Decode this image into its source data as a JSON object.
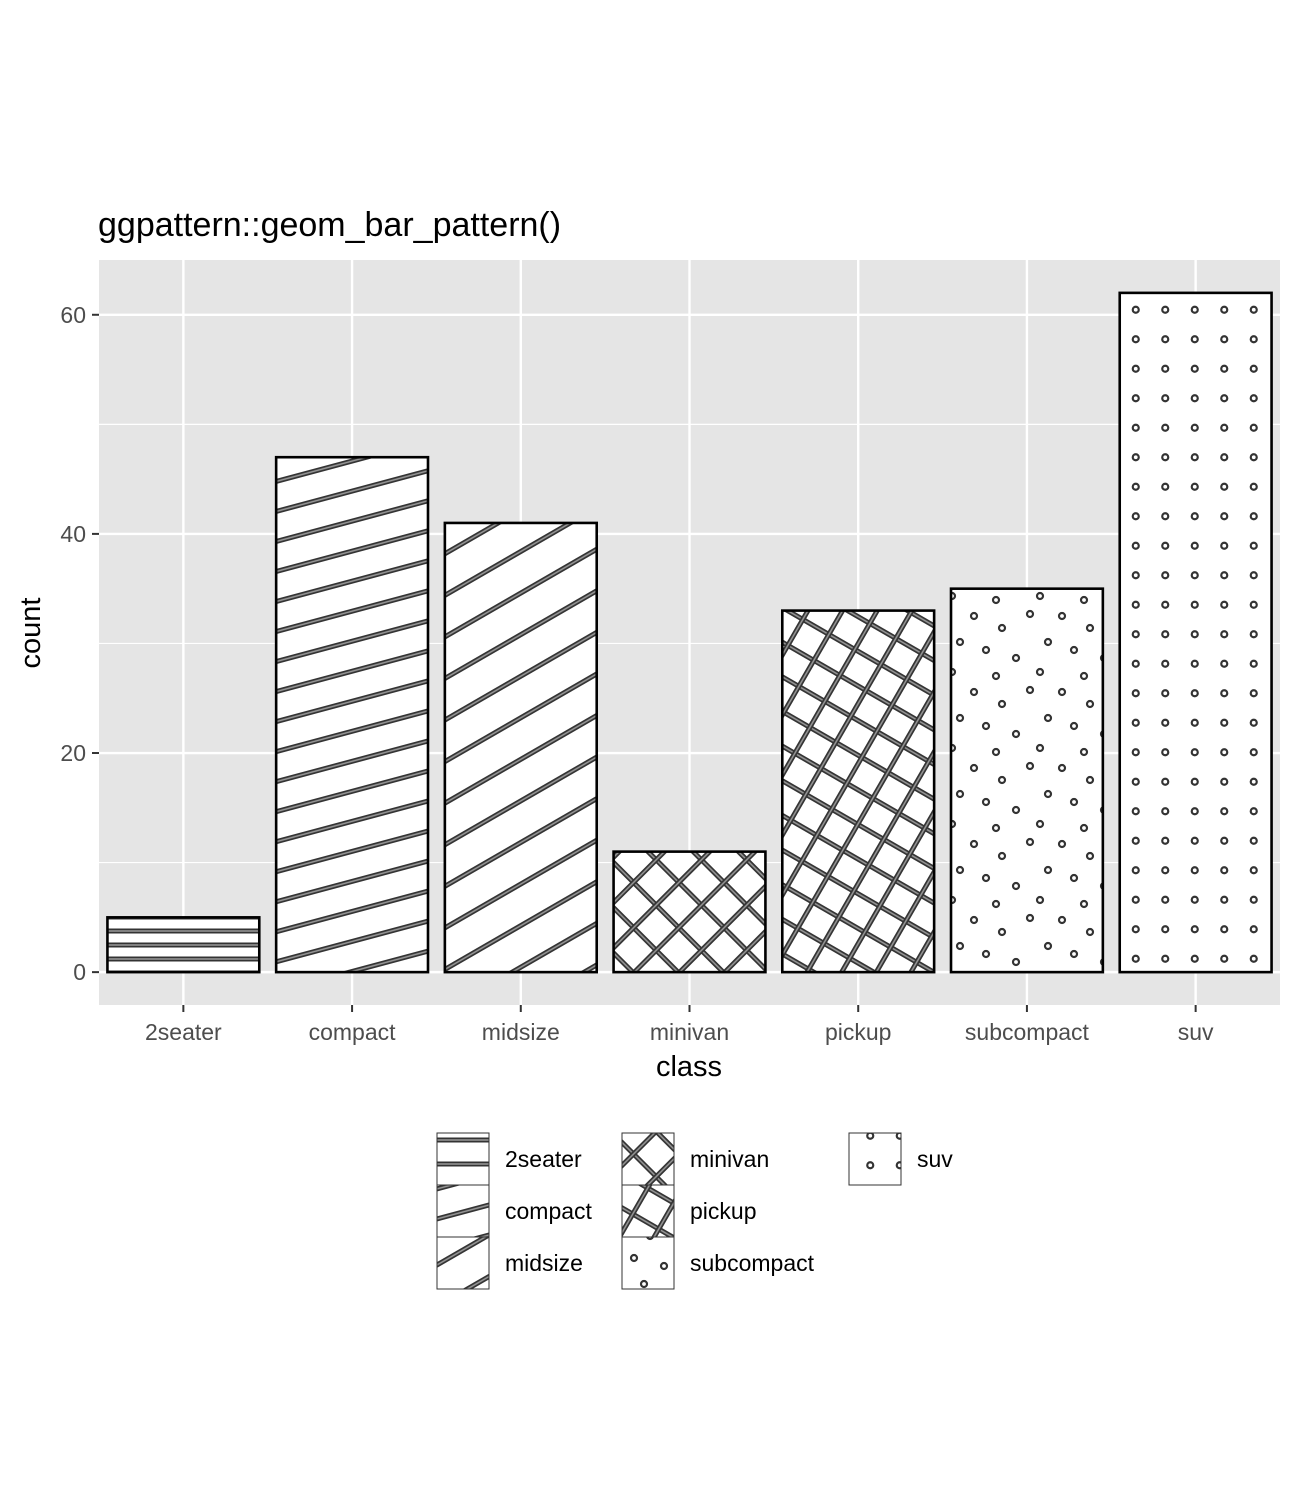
{
  "chart_data": {
    "type": "bar",
    "title": "ggpattern::geom_bar_pattern()",
    "xlabel": "class",
    "ylabel": "count",
    "categories": [
      "2seater",
      "compact",
      "midsize",
      "minivan",
      "pickup",
      "subcompact",
      "suv"
    ],
    "values": [
      5,
      47,
      41,
      11,
      33,
      35,
      62
    ],
    "patterns": [
      "stripe-horizontal",
      "stripe-shallow",
      "stripe-diagonal",
      "crosshatch",
      "crosshatch-dense",
      "circle-random",
      "circle-grid"
    ],
    "y_ticks": [
      0,
      20,
      40,
      60
    ],
    "ylim": [
      -3,
      65
    ],
    "grid": true,
    "panel_background": "#e5e5e5",
    "grid_color": "#ffffff",
    "bar_fill": "#ffffff",
    "bar_outline": "#000000",
    "pattern_color": "#333333",
    "legend": {
      "position": "bottom",
      "entries": [
        "2seater",
        "compact",
        "midsize",
        "minivan",
        "pickup",
        "subcompact",
        "suv"
      ]
    }
  }
}
